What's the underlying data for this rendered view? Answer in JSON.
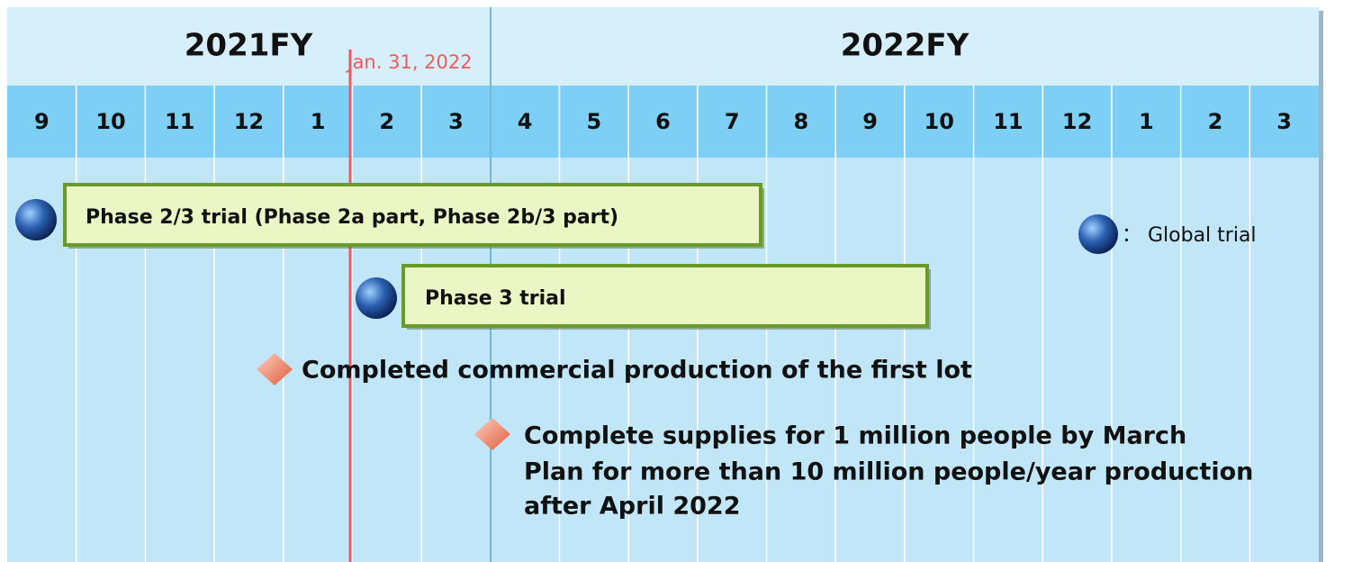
{
  "header": {
    "fy1": "2021FY",
    "fy2": "2022FY",
    "date": "Jan. 31, 2022"
  },
  "months": [
    "9",
    "10",
    "11",
    "12",
    "1",
    "2",
    "3",
    "4",
    "5",
    "6",
    "7",
    "8",
    "9",
    "10",
    "11",
    "12",
    "1",
    "2",
    "3"
  ],
  "bars": [
    "Phase 2/3 trial (Phase 2a part, Phase 2b/3 part)",
    "Phase 3 trial"
  ],
  "milestones": [
    {
      "lines": [
        "Completed commercial production of the first lot"
      ]
    },
    {
      "lines": [
        "Complete supplies for 1 million people by March",
        "Plan for more than 10 million people/year production",
        "after April 2022"
      ]
    }
  ],
  "legend": "： Global trial"
}
